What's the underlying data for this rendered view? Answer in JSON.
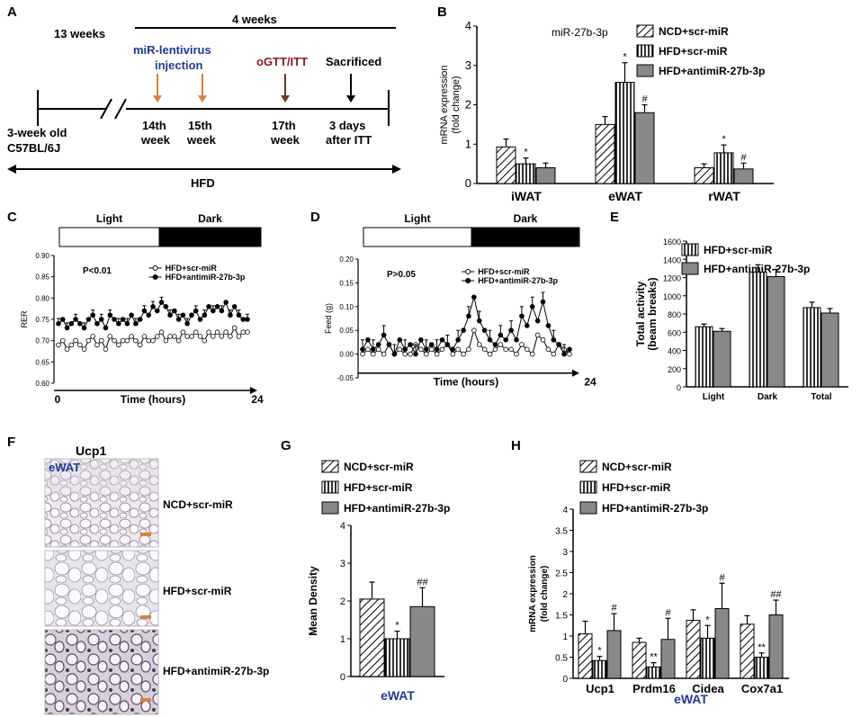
{
  "colors": {
    "blue": "#1f3a93",
    "darkred": "#8b1a1a",
    "orange": "#d9823b",
    "brown": "#6b3a2a",
    "gray": "#888888",
    "black": "#000000"
  },
  "panelA": {
    "label": "A",
    "weeks13": "13 weeks",
    "weeks4": "4 weeks",
    "injection1": "miR-lentivirus",
    "injection2": "injection",
    "ogtt": "oGTT/ITT",
    "sacrificed": "Sacrificed",
    "start1": "3-week old",
    "start2": "C57BL/6J",
    "w14a": "14th",
    "w14b": "week",
    "w15a": "15th",
    "w15b": "week",
    "w17a": "17th",
    "w17b": "week",
    "itt1": "3 days",
    "itt2": "after ITT",
    "hfd": "HFD"
  },
  "legend": {
    "ncd": "NCD+scr-miR",
    "hfd": "HFD+scr-miR",
    "anti": "HFD+antimiR-27b-3p"
  },
  "chart_data": [
    {
      "id": "B",
      "type": "bar",
      "title": "miR-27b-3p",
      "ylabel": "mRNA expression (fold change)",
      "ylim": [
        0,
        4
      ],
      "yticks": [
        "0",
        "1",
        "2",
        "3",
        "4"
      ],
      "categories": [
        "iWAT",
        "eWAT",
        "rWAT"
      ],
      "series": [
        {
          "name": "NCD+scr-miR",
          "values": [
            0.93,
            1.5,
            0.4
          ],
          "err": [
            0.2,
            0.2,
            0.1
          ],
          "marks": [
            "",
            "",
            ""
          ]
        },
        {
          "name": "HFD+scr-miR",
          "values": [
            0.5,
            2.57,
            0.78
          ],
          "err": [
            0.15,
            0.5,
            0.2
          ],
          "marks": [
            "*",
            "*",
            "*"
          ]
        },
        {
          "name": "HFD+antimiR-27b-3p",
          "values": [
            0.4,
            1.8,
            0.37
          ],
          "err": [
            0.12,
            0.2,
            0.15
          ],
          "marks": [
            "",
            "#",
            "#"
          ]
        }
      ]
    },
    {
      "id": "C",
      "type": "line",
      "label": "C",
      "ylabel": "RER",
      "xlabel": "Time (hours)",
      "xticks": [
        "0",
        "24"
      ],
      "ylim": [
        0.6,
        0.9
      ],
      "yticks": [
        "0.60",
        "0.65",
        "0.70",
        "0.75",
        "0.80",
        "0.85",
        "0.90"
      ],
      "light": "Light",
      "dark": "Dark",
      "pvalue": "P<0.01",
      "series": [
        {
          "name": "HFD+scr-miR",
          "values": [
            0.69,
            0.7,
            0.68,
            0.69,
            0.7,
            0.69,
            0.68,
            0.7,
            0.71,
            0.69,
            0.7,
            0.68,
            0.71,
            0.7,
            0.69,
            0.7,
            0.7,
            0.71,
            0.7,
            0.69,
            0.71,
            0.7,
            0.7,
            0.71,
            0.72,
            0.7,
            0.71,
            0.71,
            0.7,
            0.72,
            0.71,
            0.71,
            0.72,
            0.71,
            0.7,
            0.72,
            0.71,
            0.72,
            0.71,
            0.72,
            0.71,
            0.73,
            0.71,
            0.72,
            0.72
          ]
        },
        {
          "name": "HFD+antimiR-27b-3p",
          "values": [
            0.74,
            0.75,
            0.73,
            0.74,
            0.75,
            0.74,
            0.73,
            0.75,
            0.76,
            0.74,
            0.75,
            0.73,
            0.76,
            0.75,
            0.74,
            0.75,
            0.74,
            0.76,
            0.74,
            0.75,
            0.77,
            0.76,
            0.78,
            0.77,
            0.79,
            0.78,
            0.76,
            0.77,
            0.75,
            0.76,
            0.74,
            0.76,
            0.77,
            0.75,
            0.76,
            0.78,
            0.77,
            0.78,
            0.77,
            0.79,
            0.76,
            0.78,
            0.76,
            0.75,
            0.75
          ]
        }
      ]
    },
    {
      "id": "D",
      "type": "line",
      "label": "D",
      "ylabel": "Feed (g)",
      "xlabel": "Time (hours)",
      "xticks": [
        "24"
      ],
      "ylim": [
        -0.05,
        0.2
      ],
      "yticks": [
        "-0.05",
        "0.00",
        "0.05",
        "0.10",
        "0.15",
        "0.20"
      ],
      "light": "Light",
      "dark": "Dark",
      "pvalue": "P>0.05",
      "series": [
        {
          "name": "HFD+scr-miR",
          "values": [
            0.0,
            0.01,
            0.0,
            0.01,
            0.0,
            0.02,
            0.0,
            0.01,
            0.0,
            0.0,
            0.02,
            0.01,
            0.0,
            0.01,
            0.0,
            0.01,
            0.02,
            0.0,
            0.01,
            0.0,
            0.01,
            0.05,
            0.02,
            0.01,
            0.0,
            0.01,
            0.02,
            0.01,
            0.01,
            0.0,
            0.02,
            0.01,
            0.0,
            0.04,
            0.03,
            0.01,
            0.0,
            0.02,
            0.01,
            0.0
          ]
        },
        {
          "name": "HFD+antimiR-27b-3p",
          "values": [
            0.01,
            0.03,
            0.01,
            0.02,
            0.04,
            0.02,
            0.0,
            0.03,
            0.01,
            0.02,
            0.0,
            0.03,
            0.01,
            0.02,
            0.01,
            0.03,
            0.02,
            0.01,
            0.03,
            0.05,
            0.08,
            0.12,
            0.07,
            0.05,
            0.03,
            0.02,
            0.04,
            0.03,
            0.05,
            0.03,
            0.08,
            0.06,
            0.1,
            0.07,
            0.11,
            0.06,
            0.03,
            0.02,
            0.0,
            0.01
          ]
        }
      ]
    },
    {
      "id": "E",
      "type": "bar",
      "label": "E",
      "ylabel": "Total activity (beam breaks)",
      "ylim": [
        0,
        1600
      ],
      "yticks": [
        "0",
        "200",
        "400",
        "600",
        "800",
        "1000",
        "1200",
        "1400",
        "1600"
      ],
      "categories": [
        "Light",
        "Dark",
        "Total"
      ],
      "series": [
        {
          "name": "HFD+scr-miR",
          "values": [
            660,
            1260,
            870
          ],
          "err": [
            30,
            80,
            60
          ]
        },
        {
          "name": "HFD+antimiR-27b-3p",
          "values": [
            610,
            1210,
            810
          ],
          "err": [
            30,
            80,
            50
          ]
        }
      ]
    },
    {
      "id": "G",
      "type": "bar",
      "label": "G",
      "ylabel": "Mean Density",
      "ylim": [
        0,
        4
      ],
      "yticks": [
        "0",
        "1",
        "2",
        "3",
        "4"
      ],
      "categories": [
        "eWAT"
      ],
      "series": [
        {
          "name": "NCD+scr-miR",
          "values": [
            2.05
          ],
          "err": [
            0.45
          ],
          "marks": [
            ""
          ]
        },
        {
          "name": "HFD+scr-miR",
          "values": [
            1.0
          ],
          "err": [
            0.2
          ],
          "marks": [
            "*"
          ]
        },
        {
          "name": "HFD+antimiR-27b-3p",
          "values": [
            1.85
          ],
          "err": [
            0.5
          ],
          "marks": [
            "##"
          ]
        }
      ]
    },
    {
      "id": "H",
      "type": "bar",
      "label": "H",
      "ylabel": "mRNA expression (fold change)",
      "ylim": [
        0,
        4
      ],
      "yticks": [
        "0",
        "0.5",
        "1",
        "1.5",
        "2",
        "2.5",
        "3",
        "3.5",
        "4"
      ],
      "categories": [
        "Ucp1",
        "Prdm16",
        "Cidea",
        "Cox7a1"
      ],
      "group_label": "eWAT",
      "series": [
        {
          "name": "NCD+scr-miR",
          "values": [
            1.05,
            0.85,
            1.37,
            1.28
          ],
          "err": [
            0.3,
            0.1,
            0.25,
            0.2
          ],
          "marks": [
            "",
            "",
            "",
            ""
          ]
        },
        {
          "name": "HFD+scr-miR",
          "values": [
            0.42,
            0.27,
            0.95,
            0.5
          ],
          "err": [
            0.1,
            0.1,
            0.3,
            0.1
          ],
          "marks": [
            "*",
            "**",
            "*",
            "**"
          ]
        },
        {
          "name": "HFD+antimiR-27b-3p",
          "values": [
            1.13,
            0.92,
            1.65,
            1.5
          ],
          "err": [
            0.4,
            0.5,
            0.6,
            0.35
          ],
          "marks": [
            "#",
            "#",
            "#",
            "##"
          ]
        }
      ]
    }
  ],
  "panelF": {
    "label": "F",
    "title": "Ucp1",
    "tissue": "eWAT",
    "rows": [
      "NCD+scr-miR",
      "HFD+scr-miR",
      "HFD+antimiR-27b-3p"
    ]
  },
  "panelG_axis": "eWAT"
}
